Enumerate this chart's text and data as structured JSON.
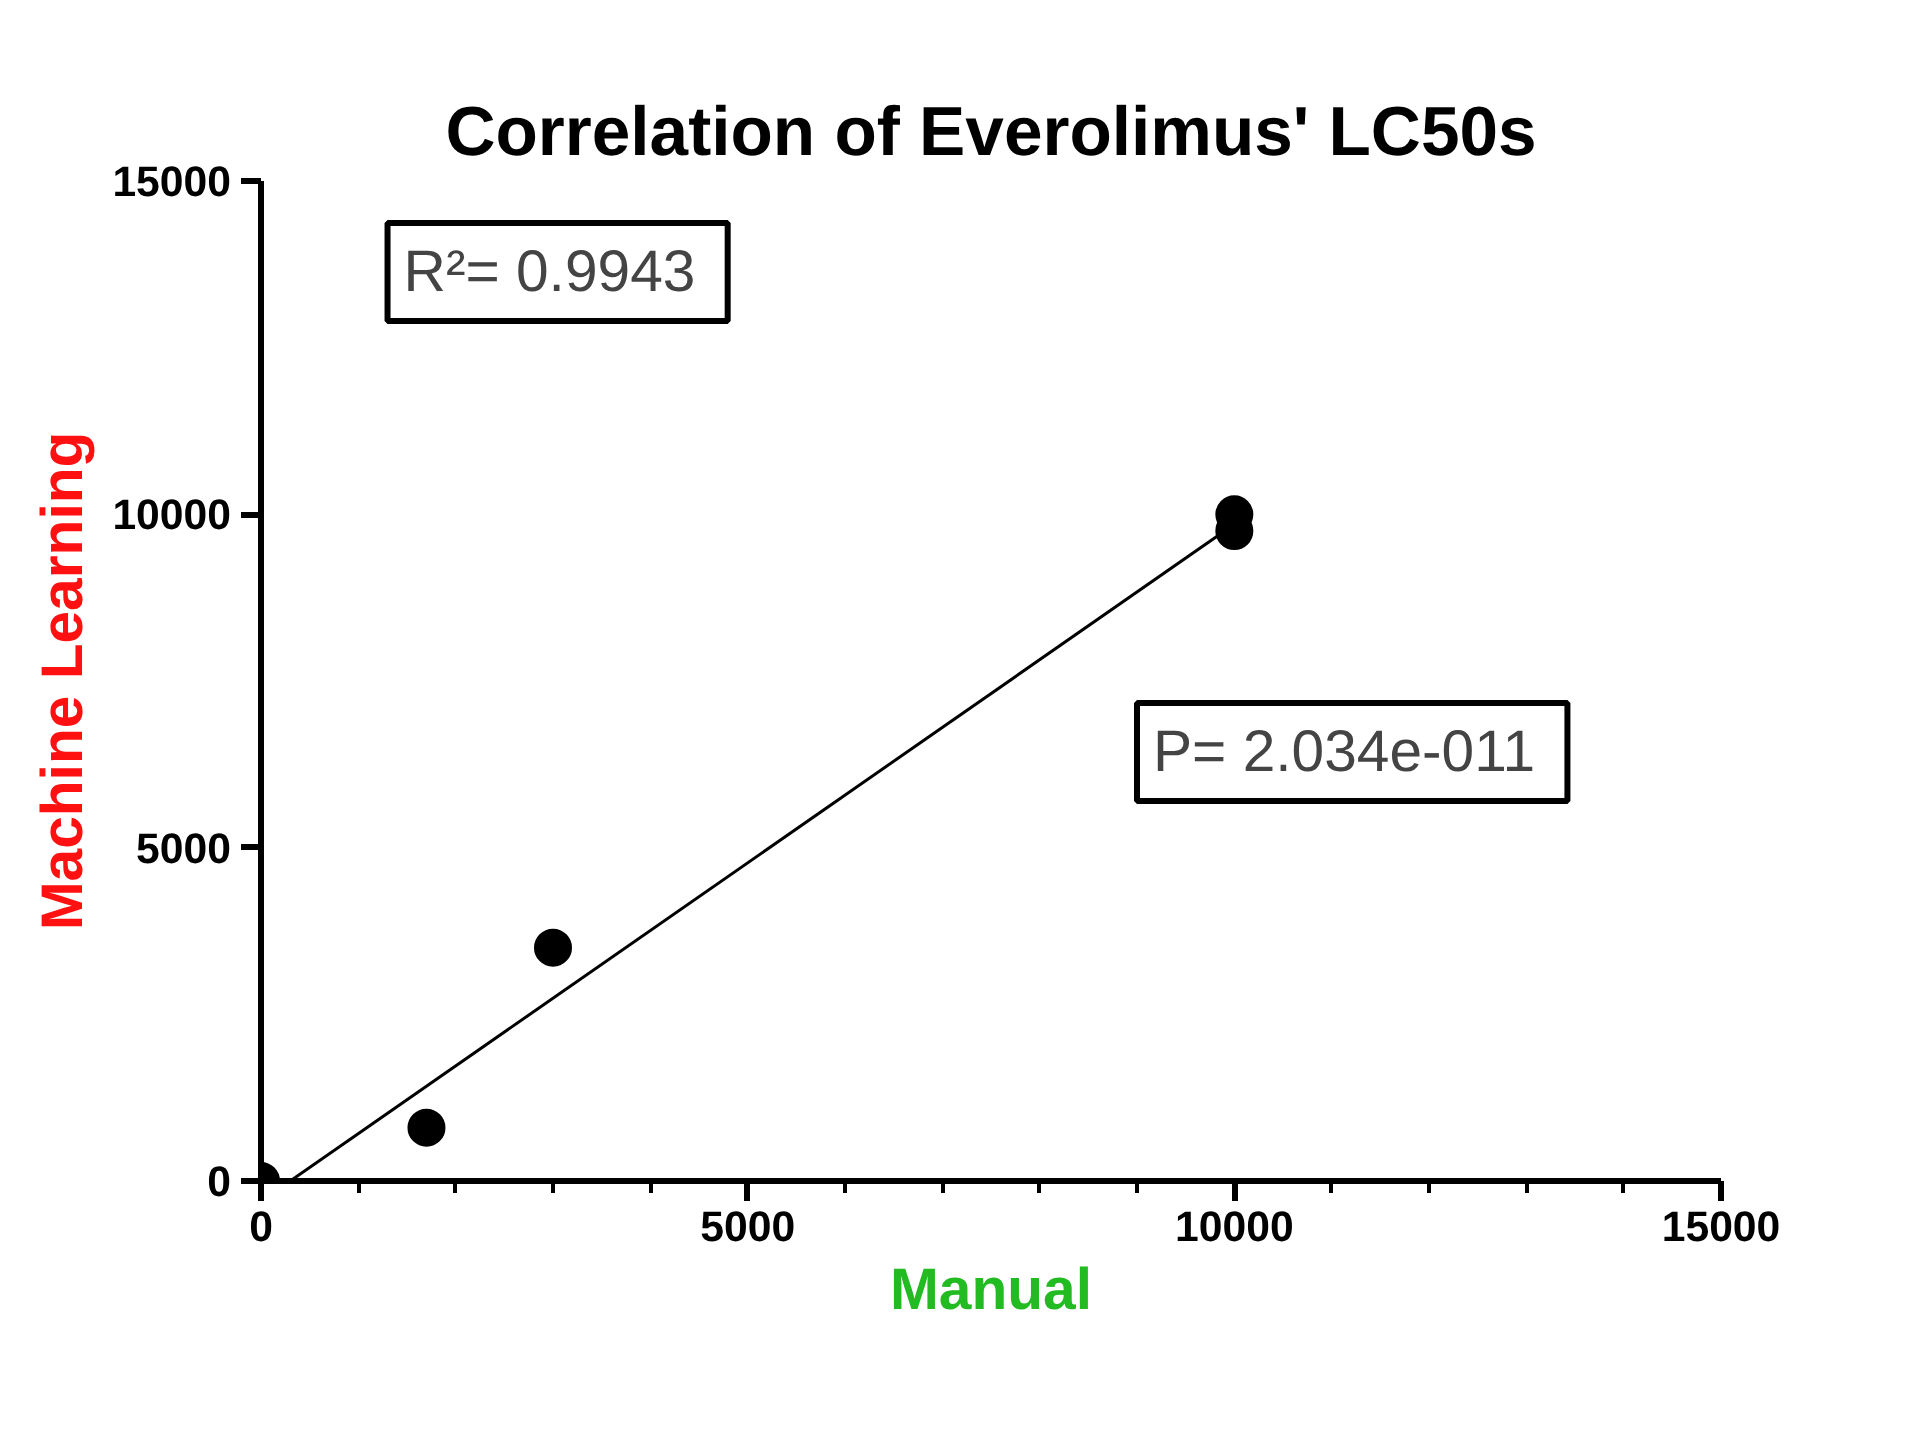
{
  "chart_data": {
    "type": "scatter",
    "title": "Correlation of Everolimus' LC50s",
    "xlabel": "Manual",
    "ylabel": "Machine Learning",
    "xlim": [
      0,
      15000
    ],
    "ylim": [
      0,
      15000
    ],
    "xticks": [
      0,
      5000,
      10000,
      15000
    ],
    "yticks": [
      0,
      5000,
      10000,
      15000
    ],
    "grid": false,
    "series": [
      {
        "marker": "circle",
        "color": "#000000",
        "x": [
          0,
          1700,
          3000,
          10000,
          10000
        ],
        "values": [
          0,
          800,
          3500,
          10000,
          9750
        ]
      },
      {
        "type": "line",
        "marker": "none",
        "color": "#000000",
        "x": [
          300,
          10000
        ],
        "values": [
          0,
          9850
        ]
      }
    ],
    "annotations": [
      "R²=  0.9943",
      "P=  2.034e-011"
    ]
  }
}
